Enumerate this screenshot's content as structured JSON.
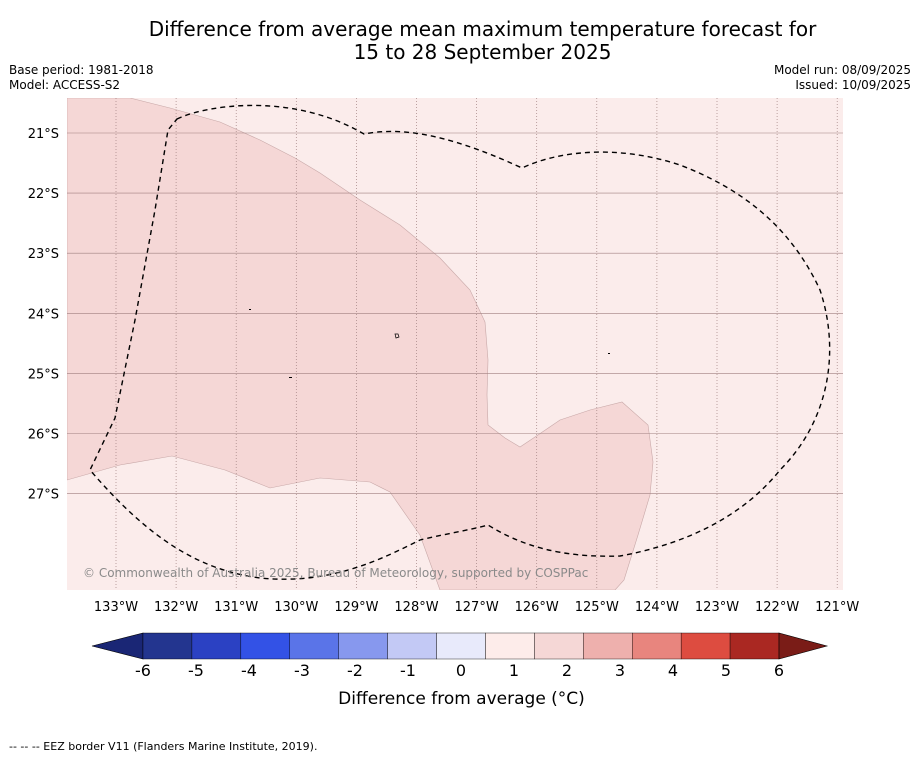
{
  "title": {
    "line1": "Difference from average mean maximum temperature forecast for",
    "line2": "15 to 28 September 2025"
  },
  "meta": {
    "base_period": "Base period: 1981-2018",
    "model": "Model: ACCESS-S2",
    "model_run": "Model run: 08/09/2025",
    "issued": "Issued: 10/09/2025"
  },
  "map": {
    "copyright": "© Commonwealth of Australia 2025, Bureau of Meteorology, supported by COSPPac",
    "lat_labels": [
      "21°S",
      "22°S",
      "23°S",
      "24°S",
      "25°S",
      "26°S",
      "27°S"
    ],
    "lon_labels": [
      "133°W",
      "132°W",
      "131°W",
      "130°W",
      "129°W",
      "128°W",
      "127°W",
      "126°W",
      "125°W",
      "124°W",
      "123°W",
      "122°W",
      "121°W"
    ],
    "colors": {
      "anomaly_0_1": "#fbeceb",
      "anomaly_1_2": "#f5d7d6",
      "eez_border": "#000000",
      "grid": "#a08080"
    }
  },
  "colorbar": {
    "ticks": [
      "-6",
      "-5",
      "-4",
      "-3",
      "-2",
      "-1",
      "0",
      "1",
      "2",
      "3",
      "4",
      "5",
      "6"
    ],
    "colors": [
      "#23358f",
      "#2b41c3",
      "#3352e6",
      "#5a74e8",
      "#8798ee",
      "#c3c9f5",
      "#e8eafb",
      "#fdecea",
      "#f5d7d6",
      "#eeb0ad",
      "#e8857e",
      "#dd4c40",
      "#aa2822"
    ],
    "under_color": "#1a2675",
    "over_color": "#7a1c17",
    "label": "Difference from average (°C)"
  },
  "footer": {
    "legend": "--  --  -- EEZ border V11 (Flanders Marine Institute, 2019)."
  }
}
